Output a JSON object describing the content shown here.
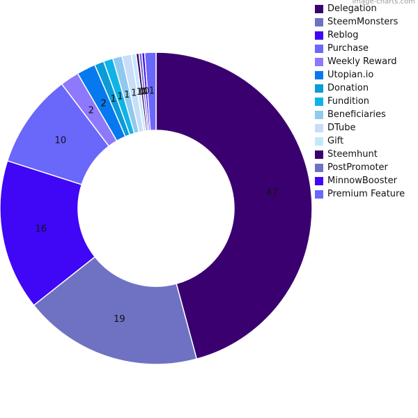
{
  "watermark": "image-charts.com",
  "chart_data": {
    "type": "pie",
    "subtype": "donut",
    "title": "",
    "legend_position": "right",
    "slices": [
      {
        "name": "Delegation",
        "value": 47,
        "label": "47",
        "color": "#3a006f"
      },
      {
        "name": "SteemMonsters",
        "value": 19,
        "label": "19",
        "color": "#6f72c2"
      },
      {
        "name": "Reblog",
        "value": 16,
        "label": "16",
        "color": "#3f07f5"
      },
      {
        "name": "Purchase",
        "value": 10,
        "label": "10",
        "color": "#6a67fb"
      },
      {
        "name": "Weekly Reward",
        "value": 2,
        "label": "2",
        "color": "#8e78fb"
      },
      {
        "name": "Utopian.io",
        "value": 2,
        "label": "2",
        "color": "#0779ee"
      },
      {
        "name": "Donation",
        "value": 1,
        "label": "1",
        "color": "#0b9bd8"
      },
      {
        "name": "Fundition",
        "value": 1,
        "label": "1",
        "color": "#0fb3e8"
      },
      {
        "name": "Beneficiaries",
        "value": 1,
        "label": "1",
        "color": "#8fc9ef"
      },
      {
        "name": "DTube",
        "value": 1,
        "label": "1",
        "color": "#c8ddf8"
      },
      {
        "name": "Gift",
        "value": 0.5,
        "label": "1",
        "color": "#c4e8fb"
      },
      {
        "name": "Steemhunt",
        "value": 0.3,
        "label": "0",
        "color": "#3a006f"
      },
      {
        "name": "PostPromoter",
        "value": 0.3,
        "label": "0",
        "color": "#6f72c2"
      },
      {
        "name": "MinnowBooster",
        "value": 0.3,
        "label": "0",
        "color": "#3f07f5"
      },
      {
        "name": "Premium Feature",
        "value": 1.2,
        "label": "1",
        "color": "#6a67fb"
      }
    ]
  }
}
